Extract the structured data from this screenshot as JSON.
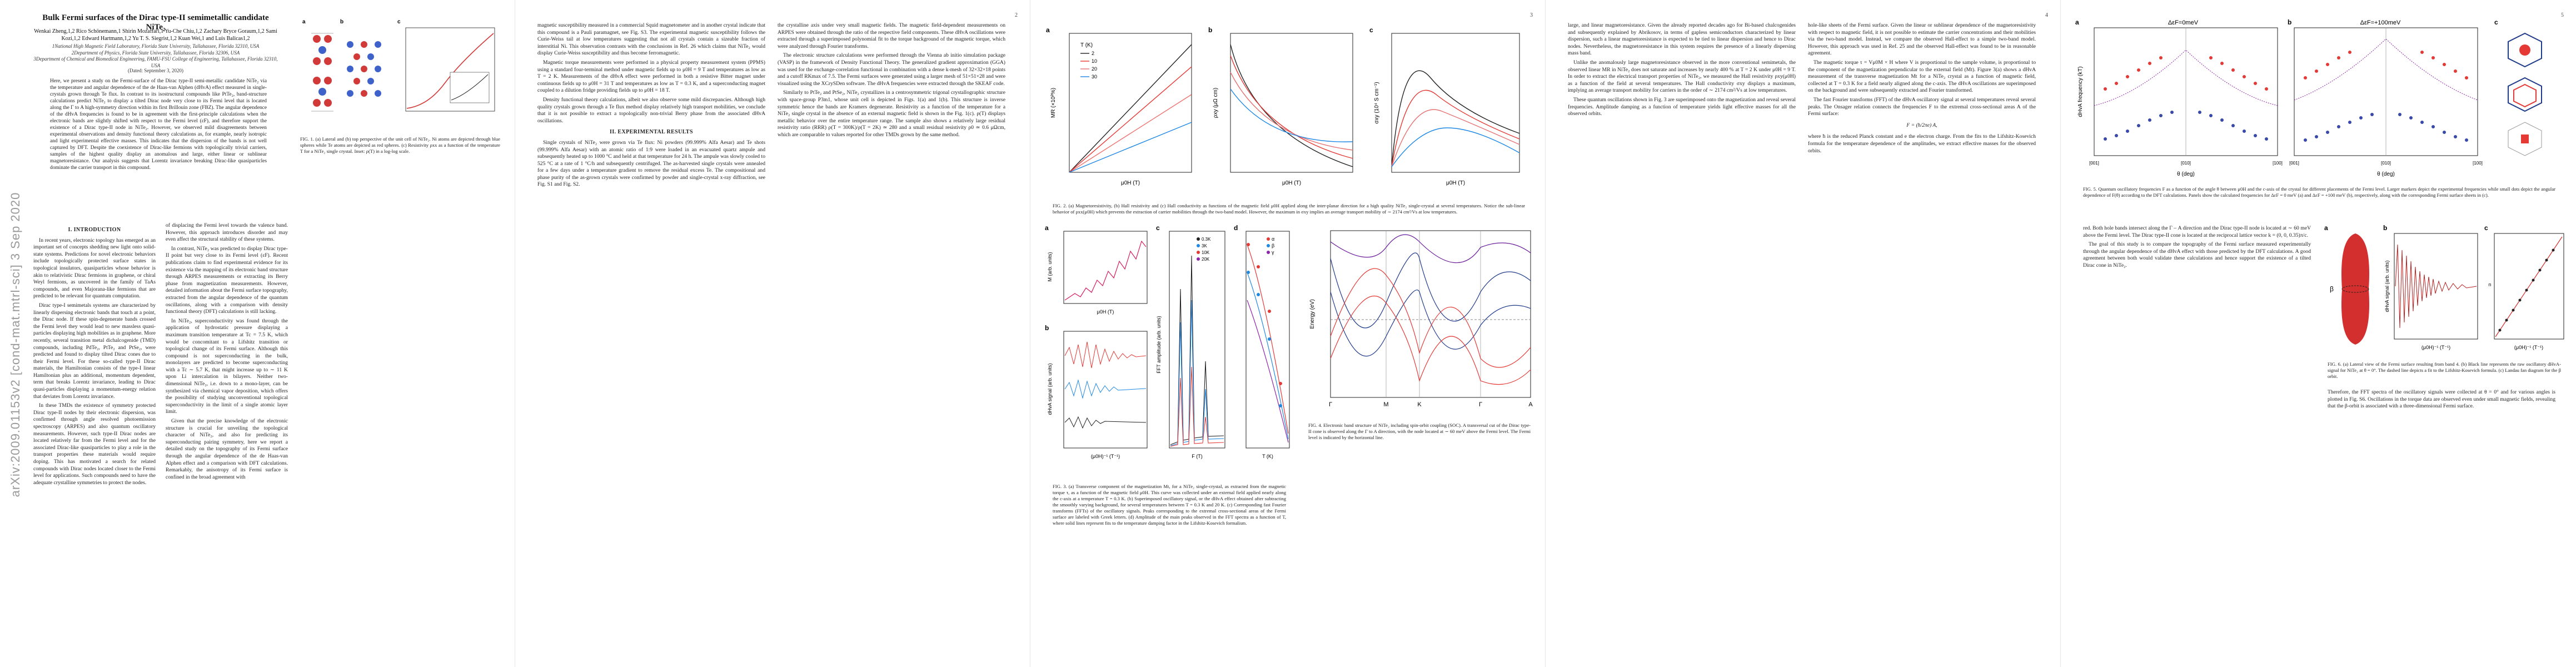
{
  "page1": {
    "title": "Bulk Fermi surfaces of the Dirac type-II semimetallic candidate NiTe₂",
    "authors": "Wenkai Zheng,1,2 Rico Schönemann,1 Shirin Mozaffari,1 Yu-Che Chiu,1,2 Zachary Bryce Goraum,1,2 Sami Kozi,1,2 Edward Hartmann,1,2 Yu T. S. Siegrist,1,2 Kuan Wei,1 and Luis Balicas1,2",
    "affiliations": "1National High Magnetic Field Laboratory, Florida State University, Tallahassee, Florida 32310, USA\n2Department of Physics, Florida State University, Tallahassee, Florida 32306, USA\n3Department of Chemical and Biomedical Engineering, FAMU-FSU College of Engineering, Tallahassee, Florida 32310, USA",
    "date": "(Dated: September 3, 2020)",
    "abstract": "Here, we present a study on the Fermi-surface of the Dirac type-II semi-metallic candidate NiTe₂ via the temperature and angular dependence of the de Haas-van Alphen (dHvA) effect measured in single-crystals grown through Te flux. In contrast to its isostructural compounds like PtTe₂, band-structure calculations predict NiTe₂ to display a tilted Dirac node very close to its Fermi level that is located along the Γ to A high-symmetry direction within its first Brillouin zone (FBZ). The angular dependence of the dHvA frequencies is found to be in agreement with the first-principle calculations when the electronic bands are slightly shifted with respect to the Fermi level (εF), and therefore support the existence of a Dirac type-II node in NiTe₂. However, we observed mild disagreements between experimental observations and density functional theory calculations as, for example, nearly isotropic and light experimental effective masses. This indicates that the dispersion of the bands is not well captured by DFT. Despite the coexistence of Dirac-like fermions with topologically trivial carriers, samples of the highest quality display an anomalous and large, either linear or sublinear magnetoresistance. Our analysis suggests that Lorentz invariance breaking Dirac-like quasiparticles dominate the carrier transport in this compound.",
    "arxiv_id": "arXiv:2009.01153v2  [cond-mat.mtrl-sci]  3 Sep 2020",
    "section1": "I.   INTRODUCTION",
    "intro_p1": "In recent years, electronic topology has emerged as an important set of concepts shedding new light onto solid-state systems. Predictions for novel electronic behaviors include topologically protected surface states in topological insulators, quasiparticles whose behavior is akin to relativistic Dirac fermions in graphene, or chiral Weyl fermions, as uncovered in the family of TaAs compounds, and even Majorana-like fermions that are predicted to be relevant for quantum computation.",
    "intro_p2": "Dirac type-I semimetals systems are characterized by linearly dispersing electronic bands that touch at a point, the Dirac node. If these spin-degenerate bands crossed the Fermi level they would lead to new massless quasi-particles displaying high mobilities as in graphene. More recently, several transition metal dichalcogenide (TMD) compounds, including PdTe₂, PtTe₂ and PtSe₂, were predicted and found to display tilted Dirac cones due to their Fermi level. For these so-called type-II Dirac materials, the Hamiltonian consists of the type-I linear Hamiltonian plus an additional, momentum dependent, term that breaks Lorentz invariance, leading to Dirac quasi-particles displaying a momentum-energy relation that deviates from Lorentz invariance.",
    "intro_p3": "In these TMDs the existence of symmetry protected Dirac type-II nodes by their electronic dispersion, was confirmed through angle resolved photoemission spectroscopy (ARPES) and also quantum oscillatory measurements. However, such type-II Dirac nodes are located relatively far from the Fermi level and for the associated Dirac-like quasiparticles to play a role in the transport properties these materials would require doping. This has motivated a search for related compounds with Dirac nodes located closer to the Fermi level for applications. Such compounds need to have the adequate crystalline symmetries to protect the nodes.",
    "col2_p1": "of displacing the Fermi level towards the valence band. However, this approach introduces disorder and may even affect the structural stability of these systems.",
    "col2_p2": "In contrast, NiTe₂ was predicted to display Dirac type-II point but very close to its Fermi level (εF). Recent publications claim to find experimental evidence for its existence via the mapping of its electronic band structure through ARPES measurements or extracting its Berry phase from magnetization measurements. However, detailed information about the Fermi surface topography, extracted from the angular dependence of the quantum oscillations, along with a comparison with density functional theory (DFT) calculations is still lacking.",
    "col2_p3": "In NiTe₂, superconductivity was found through the application of hydrostatic pressure displaying a maximum transition temperature at Tc = 7.5 K, which would be concomitant to a Lifshitz transition or topological change of its Fermi surface. Although this compound is not superconducting in the bulk, monolayers are predicted to become superconducting with a Tc ∼ 5.7 K, that might increase up to ∼ 11 K upon Li intercalation in bilayers. Neither two-dimensional NiTe₂, i.e. down to a mono-layer, can be synthesized via chemical vapor deposition, which offers the possibility of studying unconventional topological superconductivity in the limit of a single atomic layer limit.",
    "col2_p4": "Given that the precise knowledge of the electronic structure is crucial for unveiling the topological character of NiTe₂, and also for predicting its superconducting pairing symmetry, here we report a detailed study on the topography of its Fermi surface through the angular dependence of the de Haas-van Alphen effect and a comparison with DFT calculations. Remarkably, the anisotropy of its Fermi surface is confined in the broad agreement with",
    "fig1_caption": "FIG. 1. (a) Lateral and (b) top perspective of the unit cell of NiTe₂. Ni atoms are depicted through blue spheres while Te atoms are depicted as red spheres. (c) Resistivity ρxx as a function of the temperature T for a NiTe₂ single crystal. Inset: ρ(T) in a log-log scale."
  },
  "page2": {
    "page_number": "2",
    "col1_p1": "magnetic susceptibility measured in a commercial Squid magnetometer and in another crystal indicate that this compound is a Pauli paramagnet, see Fig. S3. The experimental magnetic susceptibility follows the Curie-Weiss tail at low temperatures suggesting that not all crystals contain a sizeable fraction of interstitial Ni. This observation contrasts with the conclusions in Ref. 26 which claims that NiTe₂ would display Curie-Weiss susceptibility and thus become ferromagnetic.",
    "col1_p2": "Magnetic torque measurements were performed in a physical property measurement system (PPMS) using a standard four-terminal method under magnetic fields up to μ0H = 9 T and temperatures as low as T = 2 K. Measurements of the dHvA effect were performed in both a resistive Bitter magnet under continuous fields up to μ0H = 31 T and temperatures as low as T = 0.3 K, and a superconducting magnet coupled to a dilution fridge providing fields up to μ0H = 18 T.",
    "col1_p3": "Density functional theory calculations, albeit we also observe some mild discrepancies. Although high quality crystals grown through a Te flux method display relatively high transport mobilities, we conclude that it is not possible to extract a topologically non-trivial Berry phase from the associated dHvA oscillations.",
    "section2": "II.   EXPERIMENTAL RESULTS",
    "col1_p4": "Single crystals of NiTe₂ were grown via Te flux: Ni powders (99.999% Alfa Aesar) and Te shots (99.999% Alfa Aesar) with an atomic ratio of 1:9 were loaded in an evacuated quartz ampule and subsequently heated up to 1000 °C and held at that temperature for 24 h. The ampule was slowly cooled to 525 °C at a rate of 1 °C/h and subsequently centrifuged. The as-harvested single crystals were annealed for a few days under a temperature gradient to remove the residual excess Te. The compositional and phase purity of the as-grown crystals were confirmed by powder and single-crystal x-ray diffraction, see Fig. S1 and Fig. S2.",
    "col2_p1": "the crystalline axis under very small magnetic fields. The magnetic field-dependent measurements on ARPES were obtained through the ratio of the respective field components. These dHvA oscillations were extracted through a superimposed polynomial fit to the torque background of the magnetic torque, which were analyzed through Fourier transforms.",
    "col2_p2": "The electronic structure calculations were performed through the Vienna ab initio simulation package (VASP) in the framework of Density Functional Theory. The generalized gradient approximation (GGA) was used for the exchange-correlation functional in combination with a dense k-mesh of 32×32×18 points and a cutoff RKmax of 7.5. The Fermi surfaces were generated using a larger mesh of 51×51×28 and were visualized using the XCrySDen software. The dHvA frequencies were extracted through the SKEAF code.",
    "col2_p3": "Similarly to PtTe₂ and PtSe₂, NiTe₂ crystallizes in a centrosymmetric trigonal crystallographic structure with space-group P3m1, whose unit cell is depicted in Figs. 1(a) and 1(b). This structure is inverse symmetric hence the bands are Kramers degenerate. Resistivity as a function of the temperature for a NiTe₂ single crystal in the absence of an external magnetic field is shown in the Fig. 1(c). ρ(T) displays metallic behavior over the entire temperature range. The sample also shows a relatively large residual resistivity ratio (RRR) ρ(T = 300K)/ρ(T = 2K) ≃ 280 and a small residual resistivity ρ0 ≃ 0.6 μΩcm, which are comparable to values reported for other TMDs grown by the same method."
  },
  "page3": {
    "page_number": "3",
    "fig2_caption": "FIG. 2. (a) Magnetoresistivity, (b) Hall resistivity and (c) Hall conductivity as functions of the magnetic field μ0H applied along the inter-planar direction for a high quality NiTe₂ single-crystal at several temperatures. Notice the sub-linear behavior of ρxx(μ0H) which prevents the extraction of carrier mobilities through the two-band model. However, the maximum in σxy implies an average transport mobility of ∼ 2174 cm²/Vs at low temperatures.",
    "fig3_caption": "FIG. 3. (a) Transverse component of the magnetization Mt, for a NiTe₂ single-crystal, as extracted from the magnetic torque τ, as a function of the magnetic field μ0H. This curve was collected under an external field applied nearly along the c-axis at a temperature T = 0.3 K. (b) Superimposed oscillatory signal, or the dHvA effect obtained after subtracting the smoothly varying background, for several temperatures between T = 0.3 K and 20 K. (c) Corresponding fast Fourier transforms (FFTs) of the oscillatory signals. Peaks corresponding to the extremal cross-sectional areas of the Fermi surface are labeled with Greek letters. (d) Amplitude of the main peaks observed in the FFT spectra as a function of T, where solid lines represent fits to the temperature damping factor in the Lifshitz-Kosevich formalism.",
    "fig4_caption": "FIG. 4. Electronic band structure of NiTe₂ including spin-orbit coupling (SOC). A transversal cut of the Dirac type-II cone is observed along the Γ to A direction, with the node located at ∼ 60 meV above the Fermi level. The Fermi level is indicated by the horizontal line.",
    "fig2": {
      "legend_title": "T (K)",
      "temps": [
        "2",
        "10",
        "20",
        "30"
      ],
      "ylabel_a": "MR (×10²%)",
      "ylabel_b": "ρxy (μΩ cm)",
      "ylabel_c": "σxy (10⁴ S cm⁻¹)",
      "xlabel": "μ0H (T)",
      "panels": [
        "a",
        "b",
        "c"
      ]
    },
    "fig3": {
      "panels": [
        "a",
        "b",
        "c",
        "d"
      ],
      "ylabel_a": "M (arb. units)",
      "ylabel_b": "dHvA signal (arb. units)",
      "ylabel_c": "FFT amplitude (arb. units)",
      "ylabel_d": "Amplitude (arb. units)",
      "xlabel_a": "μ0H (T)",
      "xlabel_b": "(μ0H)⁻¹ (T⁻¹)",
      "xlabel_c": "F (T)",
      "xlabel_d": "T (K)",
      "legend_c": [
        "0.3K",
        "3K",
        "10K",
        "20K"
      ],
      "legend_d": [
        "α",
        "β",
        "γ"
      ]
    },
    "fig4": {
      "ylabel": "Energy (eV)",
      "kpoints": [
        "Γ",
        "M",
        "K",
        "Γ",
        "A"
      ]
    }
  },
  "page4": {
    "page_number": "4",
    "col1_p1": "large, and linear magnetoresistance. Given the already reported decades ago for Bi-based chalcogenides and subsequently explained by Abrikosov, in terms of gapless semiconductors characterized by linear dispersion, such a linear magnetoresistance is expected to be tied to linear dispersion and hence to Dirac nodes. Nevertheless, the magnetoresistance in this system requires the presence of a linearly dispersing mass band.",
    "col1_p2": "Unlike the anomalously large magnetoresistance observed in the more conventional semimetals, the observed linear MR in NiTe₂ does not saturate and increases by nearly 400 % at T = 2 K under μ0H = 9 T. In order to extract the electrical transport properties of NiTe₂, we measured the Hall resistivity ρxy(μ0H) as a function of the field at several temperatures. The Hall conductivity σxy displays a maximum, implying an average transport mobility for carriers in the order of ∼ 2174 cm²/Vs at low temperatures.",
    "col1_p3": "These quantum oscillations shown in Fig. 3 are superimposed onto the magnetization and reveal several frequencies. Amplitude damping as a function of temperature yields light effective masses for all the observed orbits.",
    "col2_p1": "hole-like sheets of the Fermi surface. Given the linear or sublinear dependence of the magnetoresistivity with respect to magnetic field, it is not possible to estimate the carrier concentrations and their mobilities via the two-band model. Instead, we compare the observed Hall-effect to a simple two-band model. However, this approach was used in Ref. 25 and the observed Hall-effect was found to be in reasonable agreement.",
    "col2_p2": "The magnetic torque τ = Vμ0M × H where V is proportional to the sample volume, is proportional to the component of the magnetization perpendicular to the external field (Mt). Figure 3(a) shows a dHvA measurement of the transverse magnetization Mt for a NiTe₂ crystal as a function of magnetic field, collected at T = 0.3 K for a field nearly aligned along the c-axis. The dHvA oscillations are superimposed on the background and were subsequently extracted and Fourier transformed.",
    "col2_p3": "The fast Fourier transforms (FFT) of the dHvA oscillatory signal at several temperatures reveal several peaks. The Onsager relation connects the frequencies F to the extremal cross-sectional areas A of the Fermi surface:",
    "equation": "F = (ħ/2πe) A,",
    "col2_p4": "where ħ is the reduced Planck constant and e the electron charge. From the fits to the Lifshitz-Kosevich formula for the temperature dependence of the amplitudes, we extract effective masses for the observed orbits."
  },
  "page5": {
    "page_number": "5",
    "fig5_caption": "FIG. 5. Quantum oscillatory frequencies F as a function of the angle θ between μ0H and the c-axis of the crystal for different placements of the Fermi level. Larger markers depict the experimental frequencies while small dots depict the angular dependence of F(θ) according to the DFT calculations. Panels show the calculated frequencies for ΔεF = 0 meV (a) and ΔεF = +100 meV (b), respectively, along with the corresponding Fermi surface sheets in (c).",
    "fig6_caption": "FIG. 6. (a) Lateral view of the Fermi surface resulting from band 4. (b) Black line represents the raw oscillatory dHvA-signal for NiTe₂ at θ = 0°. The dashed line depicts a fit to the Lifshitz-Kosevich formula. (c) Landau fan diagram for the β orbit.",
    "fig5": {
      "panel_a_title": "ΔεF=0meV",
      "panel_b_title": "ΔεF=+100meV",
      "panels": [
        "a",
        "b",
        "c"
      ],
      "ylabel": "dHvA frequency (kT)",
      "xlabel": "θ (deg)",
      "xticks_left": "[001]",
      "xticks_mid": "[010]",
      "xticks_right": "[100]"
    },
    "fig6": {
      "panels": [
        "a",
        "b",
        "c"
      ],
      "orbit_label": "β",
      "ylabel_b": "dHvA signal (arb. units)",
      "xlabel_b": "(μ0H)⁻¹ (T⁻¹)",
      "ylabel_c": "n",
      "xlabel_c": "(μ0H)⁻¹ (T⁻¹)"
    },
    "col1_p1": "red. Both hole bands intersect along the Γ – A direction and the Dirac type-II node is located at ∼ 60 meV above the Fermi level. The Dirac type-II cone is located at the reciprocal lattice vector k = (0, 0, 0.35)π/c.",
    "col1_p2": "The goal of this study is to compare the topography of the Fermi surface measured experimentally through the angular dependence of the dHvA effect with those predicted by the DFT calculations. A good agreement between both would validate these calculations and hence support the existence of a tilted Dirac cone in NiTe₂.",
    "col2_p1": "Therefore, the FFT spectra of the oscillatory signals were collected at θ = 0° and for various angles is plotted in Fig. S6. Oscillations in the torque data are observed even under small magnetic fields, revealing that the β-orbit is associated with a three-dimensional Fermi surface."
  }
}
